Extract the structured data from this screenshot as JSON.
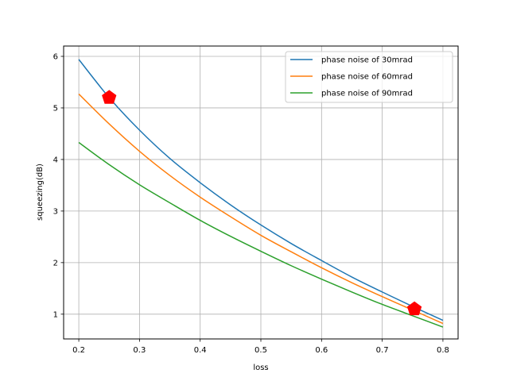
{
  "chart_data": {
    "type": "line",
    "xlabel": "loss",
    "ylabel": "squeezing(dB)",
    "xlim": [
      0.175,
      0.825
    ],
    "ylim": [
      0.52,
      6.2
    ],
    "grid": true,
    "legend_position": "top-right",
    "xticks": [
      {
        "v": 0.2,
        "label": "0.2"
      },
      {
        "v": 0.3,
        "label": "0.3"
      },
      {
        "v": 0.4,
        "label": "0.4"
      },
      {
        "v": 0.5,
        "label": "0.5"
      },
      {
        "v": 0.6,
        "label": "0.6"
      },
      {
        "v": 0.7,
        "label": "0.7"
      },
      {
        "v": 0.8,
        "label": "0.8"
      }
    ],
    "yticks": [
      {
        "v": 1,
        "label": "1"
      },
      {
        "v": 2,
        "label": "2"
      },
      {
        "v": 3,
        "label": "3"
      },
      {
        "v": 4,
        "label": "4"
      },
      {
        "v": 5,
        "label": "5"
      },
      {
        "v": 6,
        "label": "6"
      }
    ],
    "x": [
      0.2,
      0.25,
      0.3,
      0.35,
      0.4,
      0.45,
      0.5,
      0.55,
      0.6,
      0.65,
      0.7,
      0.75,
      0.8
    ],
    "series": [
      {
        "name": "phase noise of 30mrad",
        "color": "#1f77b4",
        "values": [
          5.94,
          5.2,
          4.57,
          4.02,
          3.55,
          3.12,
          2.73,
          2.37,
          2.04,
          1.72,
          1.43,
          1.15,
          0.88
        ]
      },
      {
        "name": "phase noise of 60mrad",
        "color": "#ff7f0e",
        "values": [
          5.27,
          4.69,
          4.16,
          3.69,
          3.27,
          2.89,
          2.53,
          2.21,
          1.9,
          1.61,
          1.34,
          1.08,
          0.82
        ]
      },
      {
        "name": "phase noise of 90mrad",
        "color": "#2ca02c",
        "values": [
          4.33,
          3.9,
          3.51,
          3.16,
          2.82,
          2.51,
          2.22,
          1.94,
          1.68,
          1.43,
          1.19,
          0.97,
          0.75
        ]
      }
    ],
    "markers": [
      {
        "x": 0.25,
        "y": 5.2,
        "shape": "pentagon",
        "color": "#ff0000"
      },
      {
        "x": 0.753,
        "y": 1.1,
        "shape": "pentagon",
        "color": "#ff0000"
      }
    ]
  }
}
